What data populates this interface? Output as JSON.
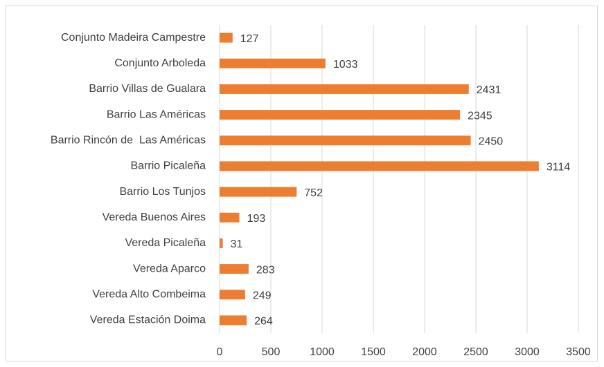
{
  "chart_data": {
    "type": "bar",
    "orientation": "horizontal",
    "categories": [
      "Conjunto Madeira Campestre",
      "Conjunto Arboleda",
      "Barrio Villas de Gualara",
      "Barrio Las Américas",
      "Barrio Rincón de  Las Américas",
      "Barrio Picaleña",
      "Barrio Los Tunjos",
      "Vereda Buenos Aires",
      "Vereda Picaleña",
      "Vereda Aparco",
      "Vereda Alto Combeima",
      "Vereda Estación Doima"
    ],
    "values": [
      127,
      1033,
      2431,
      2345,
      2450,
      3114,
      752,
      193,
      31,
      283,
      249,
      264
    ],
    "color": "#ed7d31",
    "xlim": [
      0,
      3500
    ],
    "xticks": [
      0,
      500,
      1000,
      1500,
      2000,
      2500,
      3000,
      3500
    ],
    "grid": true
  }
}
